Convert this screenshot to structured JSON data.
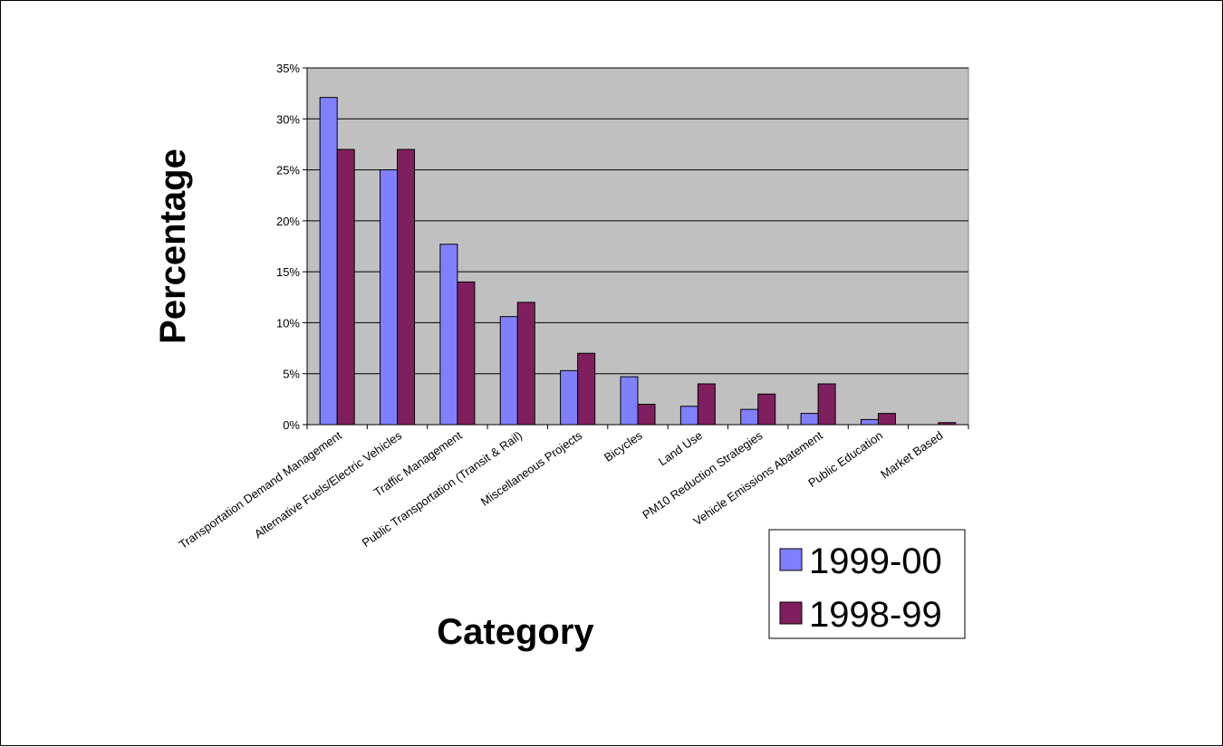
{
  "chart_data": {
    "type": "bar",
    "title": "",
    "xlabel": "Category",
    "ylabel": "Percentage",
    "ylim": [
      0,
      35
    ],
    "y_ticks": [
      "0%",
      "5%",
      "10%",
      "15%",
      "20%",
      "25%",
      "30%",
      "35%"
    ],
    "y_tick_values": [
      0,
      5,
      10,
      15,
      20,
      25,
      30,
      35
    ],
    "grid": true,
    "legend_position": "bottom-right",
    "plot_background": "#c0c0c0",
    "categories": [
      "Transportation Demand Management",
      "Alternative Fuels/Electric Vehicles",
      "Traffic Management",
      "Public Transportation (Transit & Rail)",
      "Miscellaneous Projects",
      "Bicycles",
      "Land Use",
      "PM10 Reduction Strategies",
      "Vehicle Emissions Abatement",
      "Public Education",
      "Market Based"
    ],
    "series": [
      {
        "name": "1999-00",
        "color": "#8080ff",
        "values": [
          32.1,
          25.0,
          17.7,
          10.6,
          5.3,
          4.7,
          1.8,
          1.5,
          1.1,
          0.5,
          0
        ]
      },
      {
        "name": "1998-99",
        "color": "#7f1f5f",
        "values": [
          27.0,
          27.0,
          14.0,
          12.0,
          7.0,
          2.0,
          4.0,
          3.0,
          4.0,
          1.1,
          0.2
        ]
      }
    ]
  }
}
